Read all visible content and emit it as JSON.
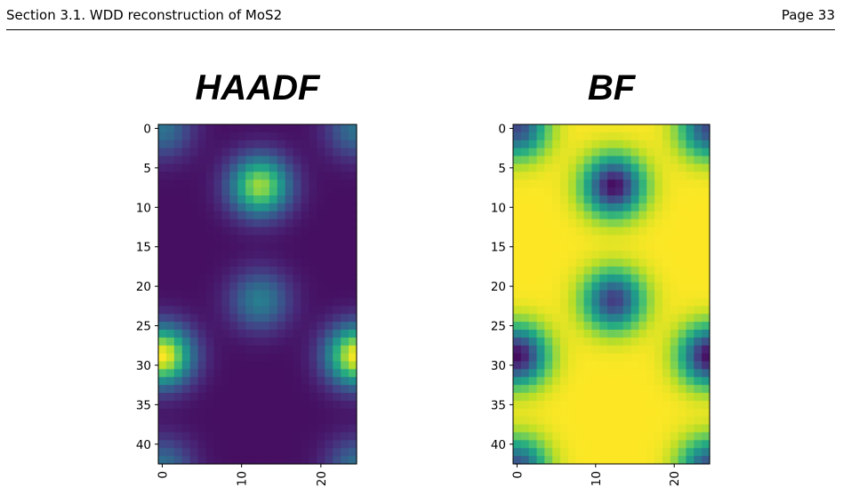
{
  "header": {
    "left_text": "Section 3.1. WDD reconstruction of MoS2",
    "right_text": "Page 33"
  },
  "chart_data": [
    {
      "type": "heatmap",
      "title": "HAADF",
      "colormap": "viridis",
      "grid": false,
      "x_ticks": [
        0,
        10,
        20
      ],
      "y_ticks": [
        0,
        5,
        10,
        15,
        20,
        25,
        30,
        35,
        40
      ],
      "xlim": [
        -0.5,
        24.5
      ],
      "ylim": [
        42.5,
        -0.5
      ],
      "atom_columns": [
        {
          "x": 12.3,
          "y": 7.3,
          "intensity": 0.85
        },
        {
          "x": 12.3,
          "y": 21.8,
          "intensity": 0.4
        },
        {
          "x": 0,
          "y": 28.8,
          "intensity": 1.0
        },
        {
          "x": 24.5,
          "y": 28.8,
          "intensity": 1.0
        },
        {
          "x": 0,
          "y": 0,
          "intensity": 0.35
        },
        {
          "x": 24.5,
          "y": 0,
          "intensity": 0.35
        },
        {
          "x": 0,
          "y": 43,
          "intensity": 0.35
        },
        {
          "x": 24.5,
          "y": 43,
          "intensity": 0.35
        }
      ]
    },
    {
      "type": "heatmap",
      "title": "BF",
      "colormap": "viridis",
      "grid": false,
      "x_ticks": [
        0,
        10,
        20
      ],
      "y_ticks": [
        0,
        5,
        10,
        15,
        20,
        25,
        30,
        35,
        40
      ],
      "xlim": [
        -0.5,
        24.5
      ],
      "ylim": [
        42.5,
        -0.5
      ],
      "atom_columns": [
        {
          "x": 12.3,
          "y": 7.3,
          "intensity": 1.0
        },
        {
          "x": 12.3,
          "y": 21.8,
          "intensity": 0.85
        },
        {
          "x": 0,
          "y": 28.8,
          "intensity": 1.0
        },
        {
          "x": 24.5,
          "y": 28.8,
          "intensity": 1.0
        },
        {
          "x": 0,
          "y": 0,
          "intensity": 0.8
        },
        {
          "x": 24.5,
          "y": 0,
          "intensity": 0.8
        },
        {
          "x": 0,
          "y": 43,
          "intensity": 0.8
        },
        {
          "x": 24.5,
          "y": 43,
          "intensity": 0.8
        }
      ]
    }
  ]
}
